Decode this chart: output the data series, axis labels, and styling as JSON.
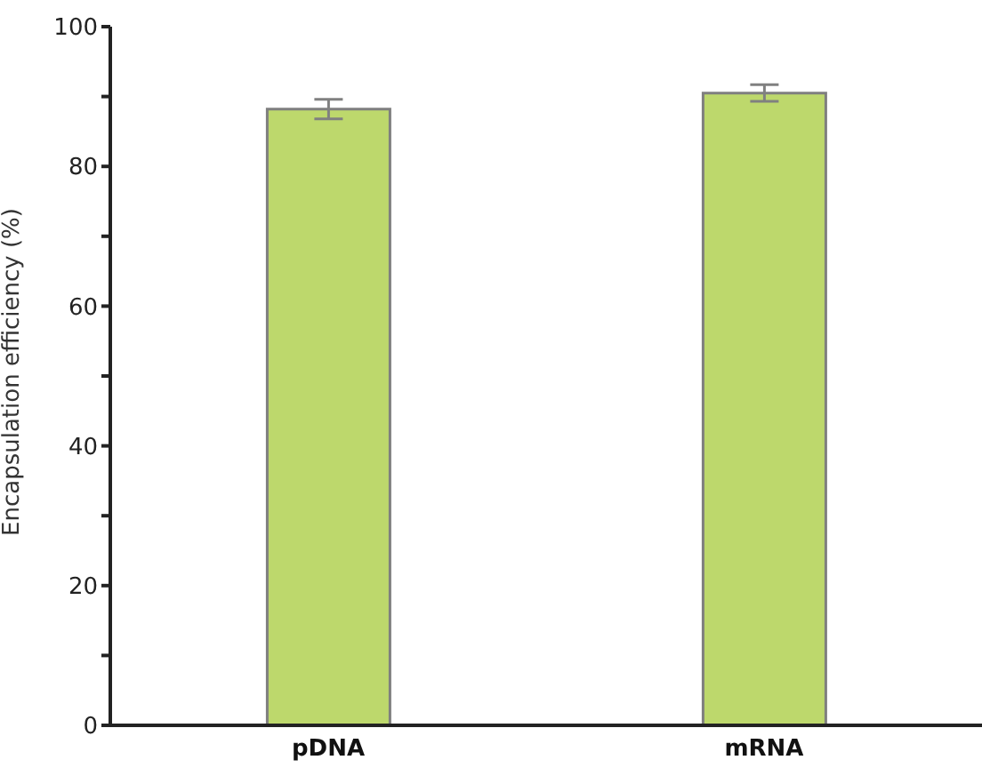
{
  "chart_data": {
    "type": "bar",
    "ylabel": "Encapsulation efficiency (%)",
    "categories": [
      "pDNA",
      "mRNA"
    ],
    "values": [
      88.2,
      90.5
    ],
    "errors": [
      1.4,
      1.2
    ],
    "color": "#bdd86c",
    "ylim": [
      0,
      100
    ],
    "yticks": [
      0,
      {
        "value": 10,
        "label": null
      },
      20,
      {
        "value": 30,
        "label": null
      },
      40,
      {
        "value": 50,
        "label": null
      },
      60,
      {
        "value": 70,
        "label": null
      },
      80,
      {
        "value": 90,
        "label": null
      },
      100
    ],
    "grid": false
  }
}
